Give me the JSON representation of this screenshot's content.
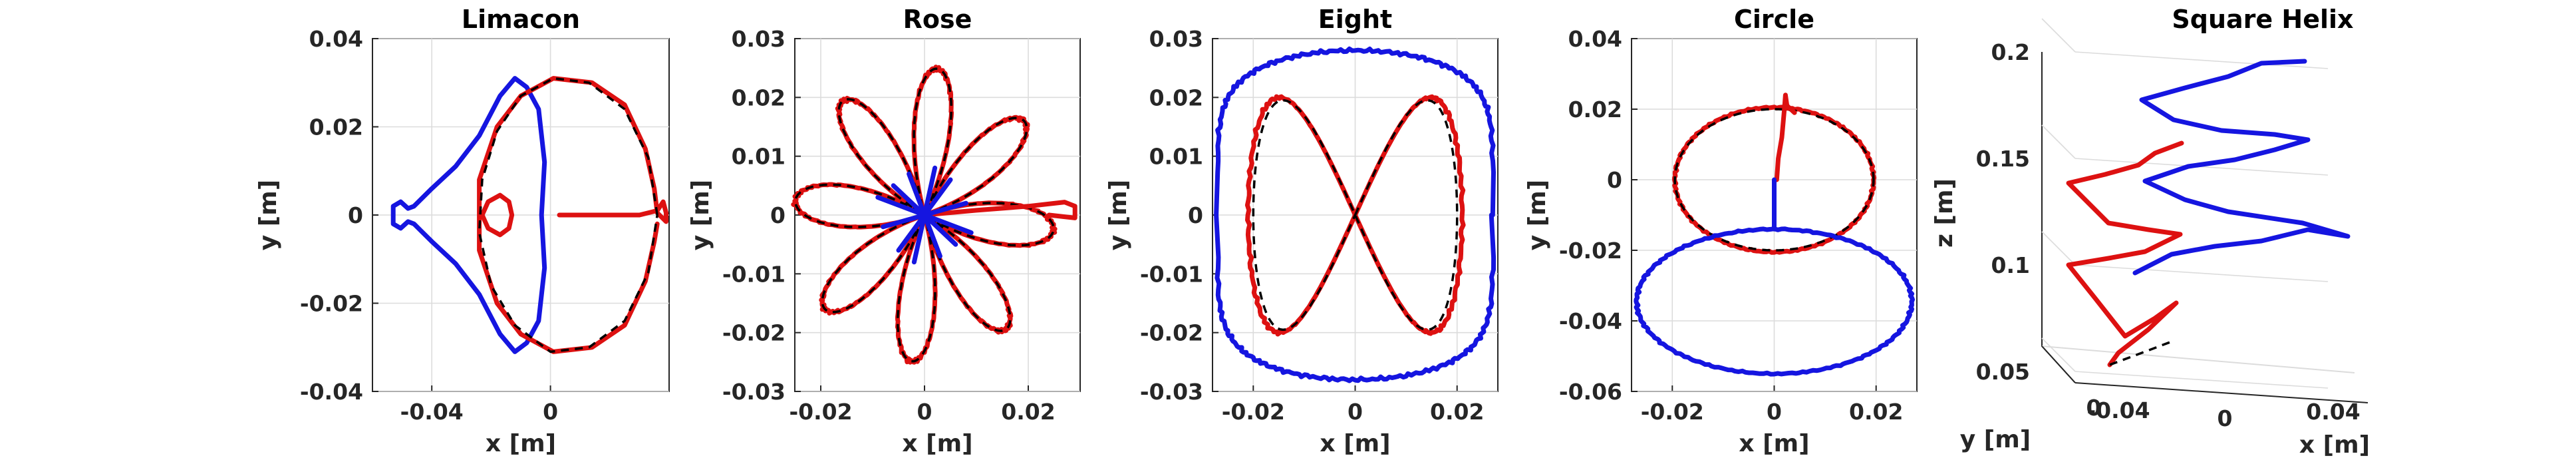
{
  "colors": {
    "blue": "#1515e0",
    "red": "#dd1111",
    "reference": "#000000"
  },
  "chart_data": [
    {
      "type": "line",
      "title": "Limacon",
      "xlabel": "x [m]",
      "ylabel": "y [m]",
      "xlim": [
        -0.06,
        0.04
      ],
      "ylim": [
        -0.04,
        0.04
      ],
      "xticks": [
        "-0.04",
        "0"
      ],
      "xtick_values": [
        -0.04,
        0
      ],
      "yticks": [
        "-0.04",
        "-0.02",
        "0",
        "0.02",
        "0.04"
      ],
      "ytick_values": [
        -0.04,
        -0.02,
        0,
        0.02,
        0.04
      ],
      "grid": true,
      "series": [
        {
          "color": "blue",
          "points": [
            [
              -0.003,
              0
            ],
            [
              -0.002,
              0.012
            ],
            [
              -0.004,
              0.024
            ],
            [
              -0.008,
              0.029
            ],
            [
              -0.012,
              0.031
            ],
            [
              -0.017,
              0.027
            ],
            [
              -0.024,
              0.018
            ],
            [
              -0.032,
              0.011
            ],
            [
              -0.04,
              0.006
            ],
            [
              -0.046,
              0.002
            ],
            [
              -0.048,
              0.0015
            ],
            [
              -0.0505,
              0.003
            ],
            [
              -0.053,
              0.002
            ],
            [
              -0.053,
              -0.002
            ],
            [
              -0.0505,
              -0.003
            ],
            [
              -0.048,
              -0.0015
            ],
            [
              -0.046,
              -0.002
            ],
            [
              -0.04,
              -0.006
            ],
            [
              -0.032,
              -0.011
            ],
            [
              -0.024,
              -0.018
            ],
            [
              -0.017,
              -0.027
            ],
            [
              -0.012,
              -0.031
            ],
            [
              -0.008,
              -0.029
            ],
            [
              -0.004,
              -0.024
            ],
            [
              -0.002,
              -0.012
            ],
            [
              -0.003,
              0
            ]
          ]
        },
        {
          "color": "red",
          "points": [
            [
              0.003,
              0
            ],
            [
              0.018,
              0
            ],
            [
              0.03,
              0
            ],
            [
              0.036,
              0.001
            ],
            [
              0.038,
              0.003
            ],
            [
              0.039,
              0.0005
            ],
            [
              0.039,
              -0.0015
            ],
            [
              0.036,
              0.0005
            ],
            [
              0.035,
              0.006
            ],
            [
              0.032,
              0.015
            ],
            [
              0.025,
              0.025
            ],
            [
              0.014,
              0.03
            ],
            [
              0.001,
              0.031
            ],
            [
              -0.01,
              0.027
            ],
            [
              -0.018,
              0.02
            ],
            [
              -0.024,
              0.008
            ],
            [
              -0.024,
              -0.008
            ],
            [
              -0.018,
              -0.02
            ],
            [
              -0.01,
              -0.027
            ],
            [
              0.001,
              -0.031
            ],
            [
              0.014,
              -0.03
            ],
            [
              0.025,
              -0.025
            ],
            [
              0.032,
              -0.015
            ],
            [
              0.035,
              -0.006
            ],
            [
              0.036,
              -0.002
            ]
          ]
        },
        {
          "color": "red",
          "points": [
            [
              -0.023,
              0
            ],
            [
              -0.021,
              0.003
            ],
            [
              -0.017,
              0.0045
            ],
            [
              -0.014,
              0.003
            ],
            [
              -0.013,
              0
            ],
            [
              -0.014,
              -0.003
            ],
            [
              -0.017,
              -0.0045
            ],
            [
              -0.021,
              -0.003
            ],
            [
              -0.023,
              0
            ]
          ]
        },
        {
          "color": "reference",
          "points": [
            [
              0.036,
              0
            ],
            [
              0.033,
              0.013
            ],
            [
              0.025,
              0.024
            ],
            [
              0.013,
              0.03
            ],
            [
              0.001,
              0.031
            ],
            [
              -0.01,
              0.027
            ],
            [
              -0.018,
              0.019
            ],
            [
              -0.023,
              0.008
            ],
            [
              -0.024,
              -0.004
            ],
            [
              -0.02,
              -0.016
            ],
            [
              -0.012,
              -0.025
            ],
            [
              0,
              -0.031
            ],
            [
              0.013,
              -0.03
            ],
            [
              0.025,
              -0.024
            ],
            [
              0.033,
              -0.013
            ],
            [
              0.036,
              0
            ]
          ]
        }
      ]
    },
    {
      "type": "line",
      "title": "Rose",
      "xlabel": "x [m]",
      "ylabel": "y [m]",
      "xlim": [
        -0.025,
        0.03
      ],
      "ylim": [
        -0.03,
        0.03
      ],
      "xticks": [
        "-0.02",
        "0",
        "0.02"
      ],
      "xtick_values": [
        -0.02,
        0,
        0.02
      ],
      "yticks": [
        "-0.03",
        "-0.02",
        "-0.01",
        "0",
        "0.01",
        "0.02",
        "0.03"
      ],
      "ytick_values": [
        -0.03,
        -0.02,
        -0.01,
        0,
        0.01,
        0.02,
        0.03
      ],
      "grid": true,
      "rose": {
        "petals": 8,
        "radius": 0.025
      },
      "series": [
        {
          "color": "red",
          "points": [
            [
              0.0,
              0.0
            ],
            [
              0.01,
              0.0008
            ],
            [
              0.02,
              0.0015
            ],
            [
              0.027,
              0.0022
            ],
            [
              0.029,
              0.0015
            ],
            [
              0.029,
              -0.0005
            ],
            [
              0.024,
              0.0
            ]
          ]
        },
        {
          "color": "blue",
          "points": [
            [
              -0.006,
              0.005
            ],
            [
              0.006,
              -0.005
            ],
            [
              0,
              0
            ],
            [
              0.005,
              0.006
            ],
            [
              -0.005,
              -0.006
            ],
            [
              0,
              0
            ],
            [
              0.002,
              0.008
            ],
            [
              -0.002,
              -0.008
            ],
            [
              0,
              0
            ],
            [
              0.008,
              0.002
            ],
            [
              -0.008,
              -0.002
            ],
            [
              0,
              0
            ],
            [
              -0.003,
              0.007
            ],
            [
              0.003,
              -0.007
            ],
            [
              0,
              0
            ],
            [
              0.009,
              -0.003
            ],
            [
              -0.009,
              0.003
            ]
          ]
        }
      ]
    },
    {
      "type": "line",
      "title": "Eight",
      "xlabel": "x [m]",
      "ylabel": "y [m]",
      "xlim": [
        -0.028,
        0.028
      ],
      "ylim": [
        -0.03,
        0.03
      ],
      "xticks": [
        "-0.02",
        "0",
        "0.02"
      ],
      "xtick_values": [
        -0.02,
        0,
        0.02
      ],
      "yticks": [
        "-0.03",
        "-0.02",
        "-0.01",
        "0",
        "0.01",
        "0.02",
        "0.03"
      ],
      "ytick_values": [
        -0.03,
        -0.02,
        -0.01,
        0,
        0.01,
        0.02,
        0.03
      ],
      "grid": true,
      "series": [
        {
          "color": "red",
          "parametric": "eight",
          "ax": 0.021,
          "ay": 0.02
        },
        {
          "color": "reference",
          "parametric": "eight",
          "ax": 0.02,
          "ay": 0.0195
        },
        {
          "color": "blue",
          "parametric": "eight-outer",
          "ax": 0.027,
          "ay": 0.028
        }
      ]
    },
    {
      "type": "line",
      "title": "Circle",
      "xlabel": "x [m]",
      "ylabel": "y [m]",
      "xlim": [
        -0.028,
        0.028
      ],
      "ylim": [
        -0.06,
        0.04
      ],
      "xticks": [
        "-0.02",
        "0",
        "0.02"
      ],
      "xtick_values": [
        -0.02,
        0,
        0.02
      ],
      "yticks": [
        "-0.06",
        "-0.04",
        "-0.02",
        "0",
        "0.02",
        "0.04"
      ],
      "ytick_values": [
        -0.06,
        -0.04,
        -0.02,
        0,
        0.02,
        0.04
      ],
      "grid": true,
      "series": [
        {
          "color": "red",
          "circle": [
            0,
            0,
            0.0195,
            0.0205
          ]
        },
        {
          "color": "reference",
          "circle": [
            0,
            0,
            0.0195,
            0.02
          ]
        },
        {
          "color": "blue",
          "circle": [
            0,
            -0.0345,
            0.027,
            0.0205
          ]
        },
        {
          "color": "red",
          "points": [
            [
              0.0005,
              0.0
            ],
            [
              0.0008,
              0.006
            ],
            [
              0.0015,
              0.012
            ],
            [
              0.002,
              0.02
            ],
            [
              0.0022,
              0.024
            ],
            [
              0.0025,
              0.021
            ],
            [
              0.004,
              0.019
            ]
          ]
        },
        {
          "color": "blue",
          "points": [
            [
              0.0,
              0.0
            ],
            [
              0.0,
              -0.006
            ],
            [
              0.0,
              -0.014
            ]
          ]
        }
      ]
    },
    {
      "type": "line",
      "title": "Square Helix",
      "xlabel": "x [m]",
      "ylabel": "y [m]",
      "zlabel": "z [m]",
      "zlim": [
        0.05,
        0.2
      ],
      "xticks": [
        "-0.04",
        "0",
        "0.04"
      ],
      "yticks": [
        "0"
      ],
      "zticks": [
        "0.05",
        "0.1",
        "0.15",
        "0.2"
      ],
      "ztick_values": [
        0.05,
        0.1,
        0.15,
        0.2
      ],
      "grid": true,
      "projection": "3d"
    }
  ]
}
